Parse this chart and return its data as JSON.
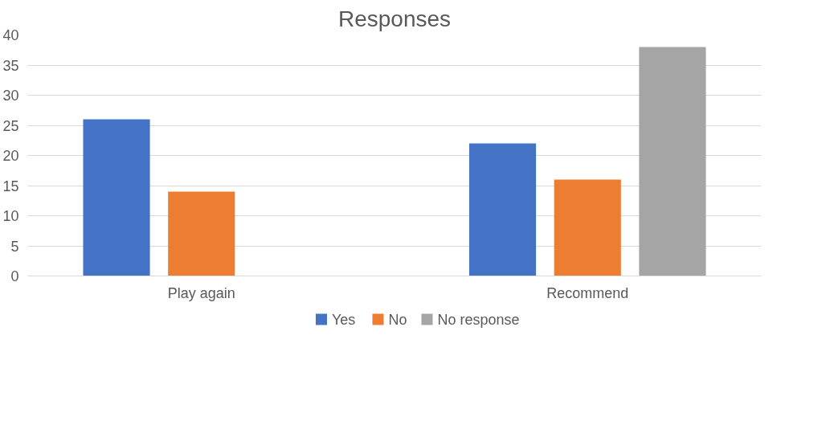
{
  "chart_data": {
    "type": "bar",
    "title": "Responses",
    "categories": [
      "Play again",
      "Recommend"
    ],
    "series": [
      {
        "name": "Yes",
        "color": "#4472c4",
        "values": [
          26,
          22
        ]
      },
      {
        "name": "No",
        "color": "#ed7d31",
        "values": [
          14,
          16
        ]
      },
      {
        "name": "No response",
        "color": "#a5a5a5",
        "values": [
          null,
          38
        ]
      }
    ],
    "ylim": [
      0,
      40
    ],
    "yticks": [
      0,
      5,
      10,
      15,
      20,
      25,
      30,
      35,
      40
    ],
    "grid": "y",
    "legend": "bottom"
  }
}
